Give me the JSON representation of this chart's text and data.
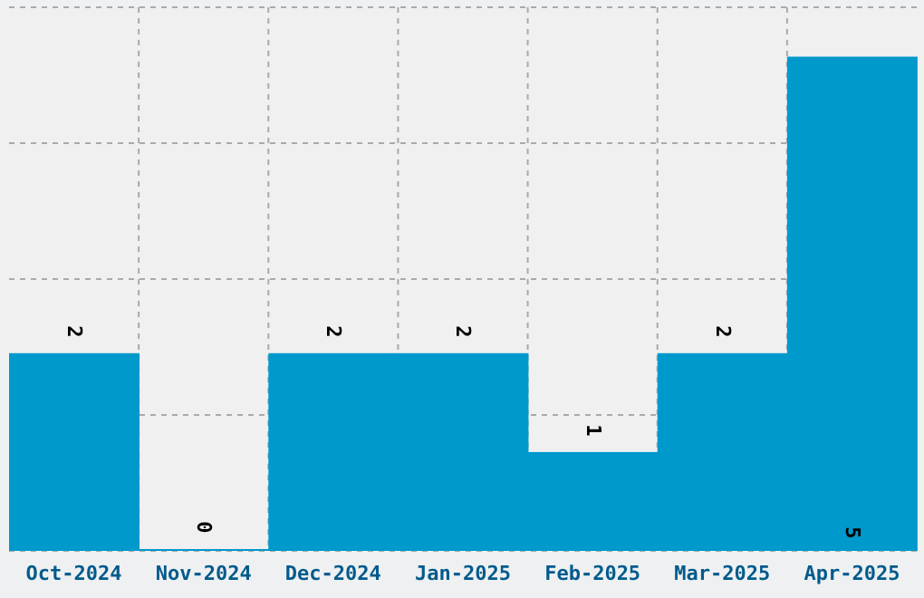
{
  "chart_data": {
    "type": "bar",
    "categories": [
      "Oct-2024",
      "Nov-2024",
      "Dec-2024",
      "Jan-2025",
      "Feb-2025",
      "Mar-2025",
      "Apr-2025"
    ],
    "values": [
      2,
      0,
      2,
      2,
      1,
      2,
      5
    ],
    "color": "#0099cc",
    "data_labels": true,
    "grid": true,
    "tick_labels": "x",
    "ylim": [
      0,
      5.5
    ]
  }
}
